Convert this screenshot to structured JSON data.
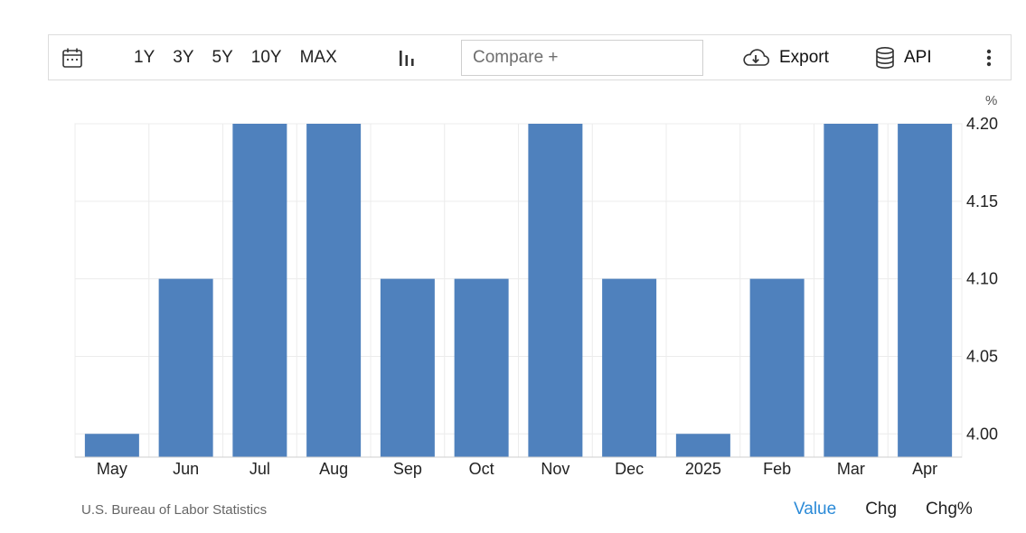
{
  "toolbar": {
    "calendar_icon": "calendar-icon",
    "ranges": [
      "1Y",
      "3Y",
      "5Y",
      "10Y",
      "MAX"
    ],
    "chart_type_icon": "bar-chart-icon",
    "compare_placeholder": "Compare +",
    "export_label": "Export",
    "export_icon": "cloud-download-icon",
    "api_label": "API",
    "api_icon": "database-icon",
    "more_icon": "more-vertical-icon"
  },
  "unit_label": "%",
  "source": "U.S. Bureau of Labor Statistics",
  "modes": [
    {
      "label": "Value",
      "active": true
    },
    {
      "label": "Chg",
      "active": false
    },
    {
      "label": "Chg%",
      "active": false
    }
  ],
  "colors": {
    "bar": "#4f81bd",
    "active_mode": "#2b8ad7",
    "grid": "#ececec"
  },
  "chart_data": {
    "type": "bar",
    "categories": [
      "May",
      "Jun",
      "Jul",
      "Aug",
      "Sep",
      "Oct",
      "Nov",
      "Dec",
      "2025",
      "Feb",
      "Mar",
      "Apr"
    ],
    "values": [
      4.0,
      4.1,
      4.2,
      4.2,
      4.1,
      4.1,
      4.2,
      4.1,
      4.0,
      4.1,
      4.2,
      4.2
    ],
    "yticks": [
      "4.00",
      "4.05",
      "4.10",
      "4.15",
      "4.20"
    ],
    "ylim": [
      3.985,
      4.2
    ],
    "y_axis_side": "right",
    "grid": true,
    "title": "",
    "xlabel": "",
    "ylabel": ""
  }
}
